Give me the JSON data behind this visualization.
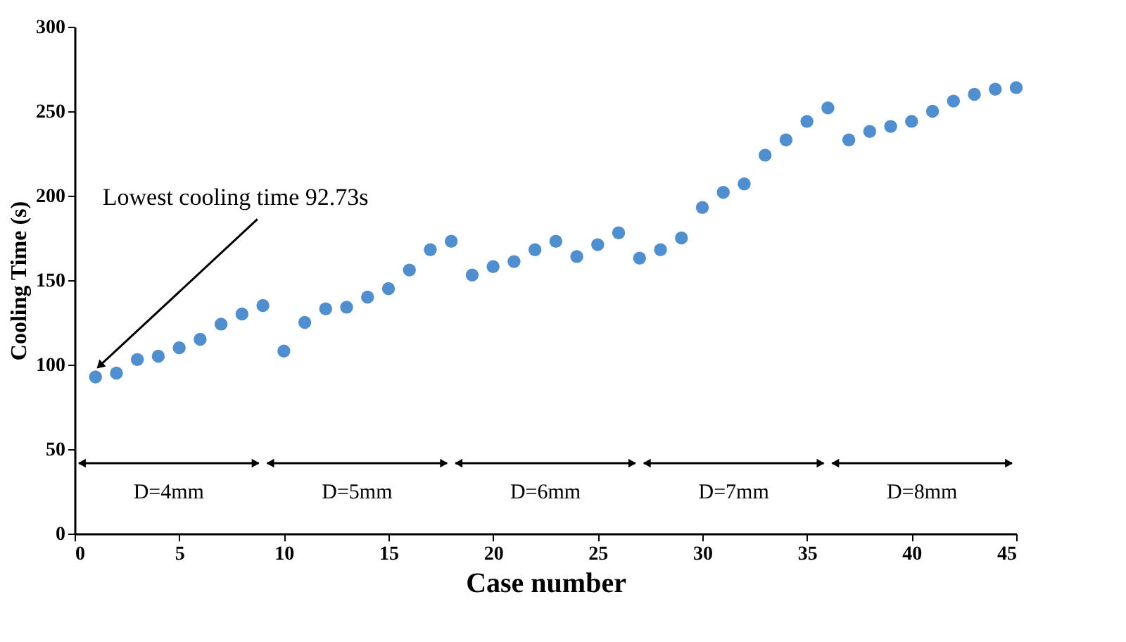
{
  "chart_data": {
    "type": "scatter",
    "xlabel": "Case number",
    "ylabel": "Cooling Time (s)",
    "x": [
      1,
      2,
      3,
      4,
      5,
      6,
      7,
      8,
      9,
      10,
      11,
      12,
      13,
      14,
      15,
      16,
      17,
      18,
      19,
      20,
      21,
      22,
      23,
      24,
      25,
      26,
      27,
      28,
      29,
      30,
      31,
      32,
      33,
      34,
      35,
      36,
      37,
      38,
      39,
      40,
      41,
      42,
      43,
      44,
      45
    ],
    "series": [
      {
        "color": "#4f8fcf",
        "values": [
          92.73,
          95,
          103,
          105,
          110,
          115,
          124,
          130,
          135,
          108,
          125,
          133,
          134,
          140,
          145,
          156,
          168,
          173,
          153,
          158,
          161,
          168,
          173,
          164,
          171,
          178,
          163,
          168,
          175,
          193,
          202,
          207,
          224,
          233,
          244,
          252,
          233,
          238,
          241,
          244,
          250,
          256,
          260,
          263,
          264
        ]
      }
    ],
    "xlim": [
      0,
      45
    ],
    "ylim": [
      0,
      300
    ],
    "xticks": [
      0,
      5,
      10,
      15,
      20,
      25,
      30,
      35,
      40,
      45
    ],
    "yticks": [
      0,
      50,
      100,
      150,
      200,
      250,
      300
    ],
    "grid": false,
    "marker": "circle",
    "annotations": [
      {
        "text": "Lowest cooling time 92.73s",
        "x": 1,
        "y": 92.73
      },
      "D=4mm",
      "D=5mm",
      "D=6mm",
      "D=7mm",
      "D=8mm"
    ]
  }
}
